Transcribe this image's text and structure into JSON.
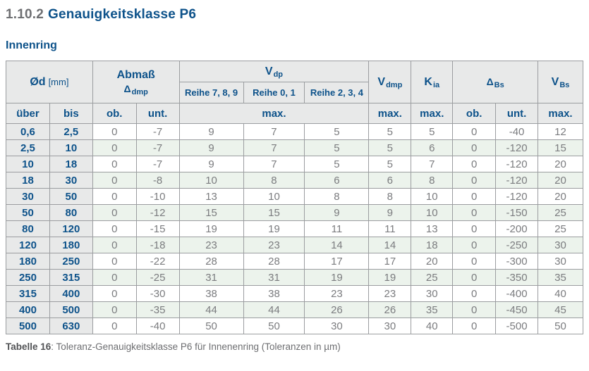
{
  "page": {
    "section_number": "1.10.2",
    "section_title": "Genauigkeitsklasse P6",
    "subtitle": "Innenring",
    "caption_label": "Tabelle 16",
    "caption_text": ": Toleranz-Genauigkeitsklasse P6 für Innenenring (Toleranzen in µm)"
  },
  "colors": {
    "accent_blue": "#0d528a",
    "header_bg": "#e8e9e9",
    "alt_row_green": "#ecf3ec",
    "value_text": "#7b7c7f",
    "border": "#9b9da0"
  },
  "table": {
    "header": {
      "diameter": {
        "main": "Ød",
        "unit": "[mm]"
      },
      "abmass": {
        "line1": "Abmaß",
        "symbol": "Δ",
        "sub": "dmp"
      },
      "vdp": {
        "main": "V",
        "sub": "dp"
      },
      "vdp_series": [
        "Reihe 7, 8, 9",
        "Reihe 0, 1",
        "Reihe 2, 3, 4"
      ],
      "vdmp": {
        "main": "V",
        "sub": "dmp"
      },
      "kia": {
        "main": "K",
        "sub": "ia"
      },
      "dbs": {
        "main": "Δ",
        "sub": "Bs"
      },
      "vbs": {
        "main": "V",
        "sub": "Bs"
      }
    },
    "sub_row": [
      "über",
      "bis",
      "ob.",
      "unt.",
      "max.",
      "max.",
      "max.",
      "ob.",
      "unt.",
      "max."
    ],
    "rows": [
      [
        "0,6",
        "2,5",
        "0",
        "-7",
        "9",
        "7",
        "5",
        "5",
        "5",
        "0",
        "-40",
        "12"
      ],
      [
        "2,5",
        "10",
        "0",
        "-7",
        "9",
        "7",
        "5",
        "5",
        "6",
        "0",
        "-120",
        "15"
      ],
      [
        "10",
        "18",
        "0",
        "-7",
        "9",
        "7",
        "5",
        "5",
        "7",
        "0",
        "-120",
        "20"
      ],
      [
        "18",
        "30",
        "0",
        "-8",
        "10",
        "8",
        "6",
        "6",
        "8",
        "0",
        "-120",
        "20"
      ],
      [
        "30",
        "50",
        "0",
        "-10",
        "13",
        "10",
        "8",
        "8",
        "10",
        "0",
        "-120",
        "20"
      ],
      [
        "50",
        "80",
        "0",
        "-12",
        "15",
        "15",
        "9",
        "9",
        "10",
        "0",
        "-150",
        "25"
      ],
      [
        "80",
        "120",
        "0",
        "-15",
        "19",
        "19",
        "11",
        "11",
        "13",
        "0",
        "-200",
        "25"
      ],
      [
        "120",
        "180",
        "0",
        "-18",
        "23",
        "23",
        "14",
        "14",
        "18",
        "0",
        "-250",
        "30"
      ],
      [
        "180",
        "250",
        "0",
        "-22",
        "28",
        "28",
        "17",
        "17",
        "20",
        "0",
        "-300",
        "30"
      ],
      [
        "250",
        "315",
        "0",
        "-25",
        "31",
        "31",
        "19",
        "19",
        "25",
        "0",
        "-350",
        "35"
      ],
      [
        "315",
        "400",
        "0",
        "-30",
        "38",
        "38",
        "23",
        "23",
        "30",
        "0",
        "-400",
        "40"
      ],
      [
        "400",
        "500",
        "0",
        "-35",
        "44",
        "44",
        "26",
        "26",
        "35",
        "0",
        "-450",
        "45"
      ],
      [
        "500",
        "630",
        "0",
        "-40",
        "50",
        "50",
        "30",
        "30",
        "40",
        "0",
        "-500",
        "50"
      ]
    ]
  }
}
